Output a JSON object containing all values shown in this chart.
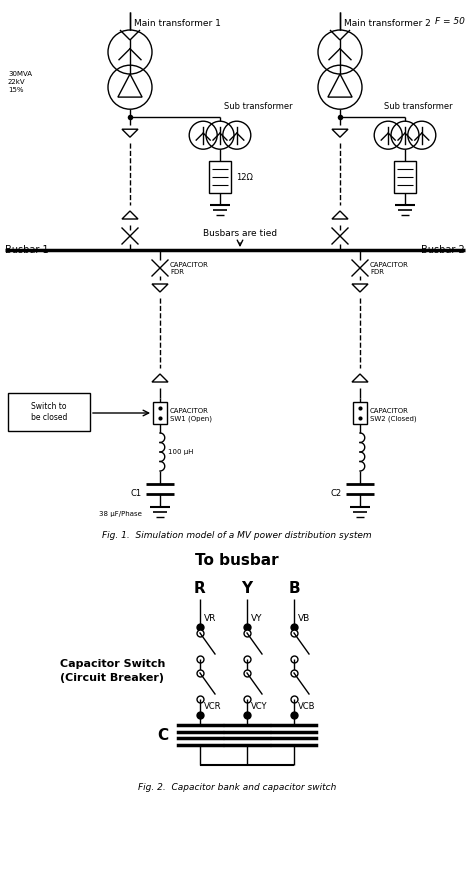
{
  "fig_width": 4.74,
  "fig_height": 8.89,
  "dpi": 100,
  "bg_color": "#ffffff",
  "line_color": "#000000",
  "fig1_caption": "Fig. 1.  Simulation model of a MV power distribution system",
  "fig2_caption": "Fig. 2.  Capacitor bank and capacitor switch",
  "fig2_title": "To busbar",
  "f_label": "F = 50",
  "busbar1_label": "Busbar 1",
  "busbar2_label": "Busbar 2",
  "transformer1_label": "Main transformer 1",
  "transformer2_label": "Main transformer 2",
  "sub_transformer_label": "Sub transformer",
  "specs_label": "30MVA\n22kV\n15%",
  "impedance_label": "12Ω",
  "busbars_tied_label": "Busbars are tied",
  "cap_fdr_label": "CAPACITOR\nFDR",
  "cap_sw1_label": "CAPACITOR\nSW1 (Open)",
  "cap_sw2_label": "CAPACITOR\nSW2 (Closed)",
  "inductance_label": "100 μH",
  "c1_label": "C1",
  "c2_label": "C2",
  "cap_value_label": "38 μF/Phase",
  "switch_label": "Switch to\nbe closed",
  "cap_switch_label": "Capacitor Switch\n(Circuit Breaker)",
  "phase_R": "R",
  "phase_Y": "Y",
  "phase_B": "B",
  "VR": "VR",
  "VY": "VY",
  "VB": "VB",
  "VCR": "VCR",
  "VCY": "VCY",
  "VCB": "VCB",
  "C_label": "C"
}
